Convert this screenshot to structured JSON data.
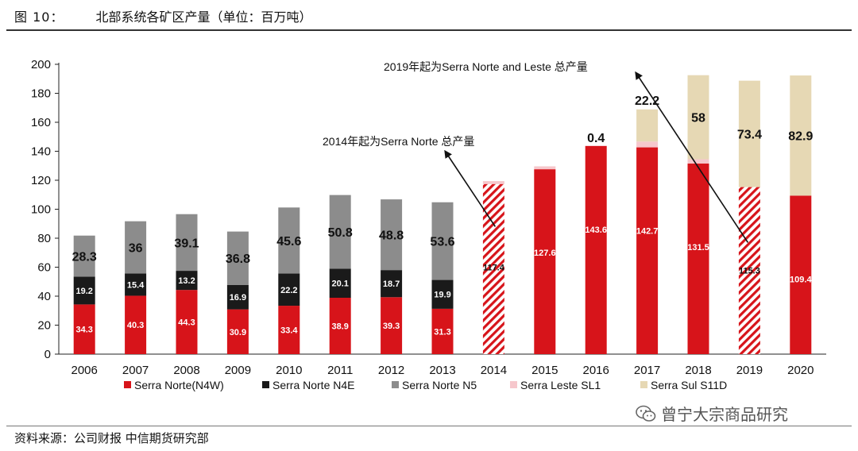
{
  "header": {
    "figure_label": "图 10：",
    "title": "北部系统各矿区产量（单位：百万吨）"
  },
  "footer": {
    "source": "资料来源：公司财报 中信期货研究部",
    "watermark": "曾宁大宗商品研究"
  },
  "colors": {
    "n4w": "#d7141a",
    "n4e": "#1a1a1a",
    "n5": "#8c8c8c",
    "sl1": "#f6c7cc",
    "s11d": "#e6d8b4",
    "hatch_line": "#d7141a"
  },
  "chart_data": {
    "type": "bar",
    "stacked": true,
    "title": "北部系统各矿区产量（单位：百万吨）",
    "ylim": [
      0,
      200
    ],
    "yticks": [
      0,
      20,
      40,
      60,
      80,
      100,
      120,
      140,
      160,
      180,
      200
    ],
    "categories": [
      "2006",
      "2007",
      "2008",
      "2009",
      "2010",
      "2011",
      "2012",
      "2013",
      "2014",
      "2015",
      "2016",
      "2017",
      "2018",
      "2019",
      "2020"
    ],
    "hatched_categories": [
      "2014",
      "2019"
    ],
    "series": [
      {
        "key": "n4w",
        "name": "Serra Norte(N4W)",
        "values": [
          34.3,
          40.3,
          44.3,
          30.9,
          33.4,
          38.9,
          39.3,
          31.3,
          117.4,
          127.6,
          143.6,
          142.7,
          131.5,
          115.3,
          109.4
        ],
        "labels": [
          "34.3",
          "40.3",
          "44.3",
          "30.9",
          "33.4",
          "38.9",
          "39.3",
          "31.3",
          "117.4",
          "127.6",
          "143.6",
          "142.7",
          "131.5",
          "115.3",
          "109.4"
        ]
      },
      {
        "key": "n4e",
        "name": "Serra Norte N4E",
        "values": [
          19.2,
          15.4,
          13.2,
          16.9,
          22.2,
          20.1,
          18.7,
          19.9,
          0,
          0,
          0,
          0,
          0,
          0,
          0
        ],
        "labels": [
          "19.2",
          "15.4",
          "13.2",
          "16.9",
          "22.2",
          "20.1",
          "18.7",
          "19.9",
          "",
          "",
          "",
          "",
          "",
          "",
          ""
        ]
      },
      {
        "key": "n5",
        "name": "Serra Norte N5",
        "values": [
          28.3,
          36,
          39.1,
          36.8,
          45.6,
          50.8,
          48.8,
          53.6,
          0,
          0,
          0,
          0,
          0,
          0,
          0
        ],
        "labels": [
          "28.3",
          "36",
          "39.1",
          "36.8",
          "45.6",
          "50.8",
          "48.8",
          "53.6",
          "",
          "",
          "",
          "",
          "",
          "",
          ""
        ]
      },
      {
        "key": "sl1",
        "name": "Serra Leste SL1",
        "values": [
          0,
          0,
          0,
          0,
          0,
          0,
          0,
          0,
          2,
          2,
          0.4,
          4,
          3,
          0,
          0
        ],
        "labels": [
          "",
          "",
          "",
          "",
          "",
          "",
          "",
          "",
          "",
          "",
          "0.4",
          "",
          "",
          "",
          ""
        ]
      },
      {
        "key": "s11d",
        "name": "Serra Sul S11D",
        "values": [
          0,
          0,
          0,
          0,
          0,
          0,
          0,
          0,
          0,
          0,
          0,
          22.2,
          58,
          73.4,
          82.9
        ],
        "labels": [
          "",
          "",
          "",
          "",
          "",
          "",
          "",
          "",
          "",
          "",
          "",
          "22.2",
          "58",
          "73.4",
          "82.9"
        ]
      }
    ],
    "legend": [
      "Serra Norte(N4W)",
      "Serra Norte N4E",
      "Serra Norte N5",
      "Serra Leste SL1",
      "Serra Sul S11D"
    ],
    "annotations": [
      {
        "text": "2014年起为Serra Norte 总产量",
        "target": "2014"
      },
      {
        "text": "2019年起为Serra Norte and Leste 总产量",
        "target": "2019"
      }
    ]
  }
}
